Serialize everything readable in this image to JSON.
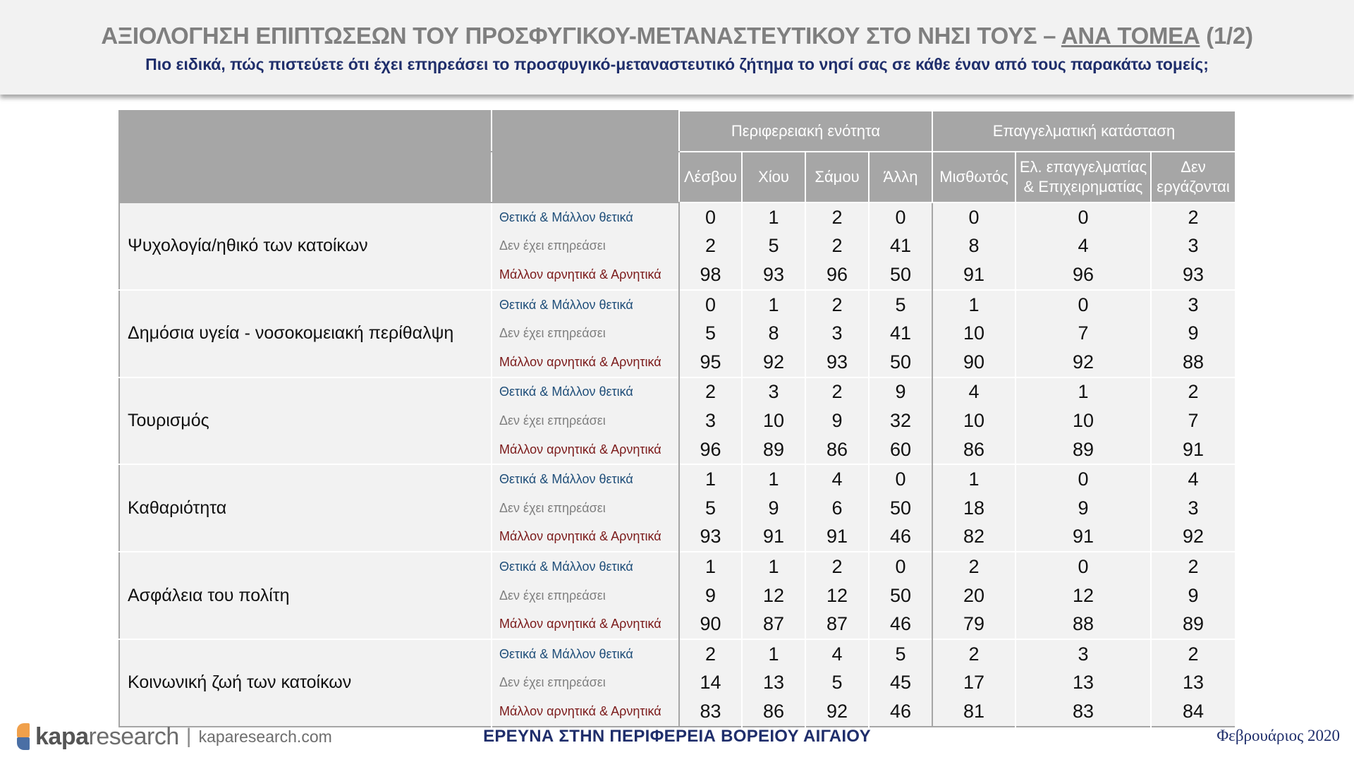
{
  "header": {
    "title_main": "ΑΞΙΟΛΟΓΗΣΗ ΕΠΙΠΤΩΣΕΩΝ ΤΟΥ ΠΡΟΣΦΥΓΙΚΟΥ-ΜΕΤΑΝΑΣΤΕΥΤΙΚΟΥ ΣΤΟ ΝΗΣΙ ΤΟΥΣ – ",
    "title_underlined": "ΑΝΑ ΤΟΜΕΑ",
    "title_page": " (1/2)",
    "subtitle": "Πιο ειδικά, πώς πιστεύετε ότι έχει επηρεάσει το προσφυγικό-μεταναστευτικό ζήτημα το νησί σας σε κάθε έναν από τους παρακάτω τομείς;"
  },
  "table": {
    "groups": [
      "Περιφερειακή ενότητα",
      "Επαγγελματική κατάσταση"
    ],
    "columns": [
      "Λέσβου",
      "Χίου",
      "Σάμου",
      "Άλλη",
      "Μισθωτός",
      "Ελ. επαγγελματίας & Επιχειρηματίας",
      "Δεν εργάζονται"
    ],
    "categories": [
      "Θετικά & Μάλλον θετικά",
      "Δεν έχει επηρεάσει",
      "Μάλλον αρνητικά & Αρνητικά"
    ],
    "sectors": [
      {
        "name": "Ψυχολογία/ηθικό των κατοίκων",
        "rows": [
          [
            "0",
            "1",
            "2",
            "0",
            "0",
            "0",
            "2"
          ],
          [
            "2",
            "5",
            "2",
            "41",
            "8",
            "4",
            "3"
          ],
          [
            "98",
            "93",
            "96",
            "50",
            "91",
            "96",
            "93"
          ]
        ]
      },
      {
        "name": "Δημόσια υγεία - νοσοκομειακή περίθαλψη",
        "rows": [
          [
            "0",
            "1",
            "2",
            "5",
            "1",
            "0",
            "3"
          ],
          [
            "5",
            "8",
            "3",
            "41",
            "10",
            "7",
            "9"
          ],
          [
            "95",
            "92",
            "93",
            "50",
            "90",
            "92",
            "88"
          ]
        ]
      },
      {
        "name": "Τουρισμός",
        "rows": [
          [
            "2",
            "3",
            "2",
            "9",
            "4",
            "1",
            "2"
          ],
          [
            "3",
            "10",
            "9",
            "32",
            "10",
            "10",
            "7"
          ],
          [
            "96",
            "89",
            "86",
            "60",
            "86",
            "89",
            "91"
          ]
        ]
      },
      {
        "name": "Καθαριότητα",
        "rows": [
          [
            "1",
            "1",
            "4",
            "0",
            "1",
            "0",
            "4"
          ],
          [
            "5",
            "9",
            "6",
            "50",
            "18",
            "9",
            "3"
          ],
          [
            "93",
            "91",
            "91",
            "46",
            "82",
            "91",
            "92"
          ]
        ]
      },
      {
        "name": "Ασφάλεια του πολίτη",
        "rows": [
          [
            "1",
            "1",
            "2",
            "0",
            "2",
            "0",
            "2"
          ],
          [
            "9",
            "12",
            "12",
            "50",
            "20",
            "12",
            "9"
          ],
          [
            "90",
            "87",
            "87",
            "46",
            "79",
            "88",
            "89"
          ]
        ]
      },
      {
        "name": "Κοινωνική ζωή των κατοίκων",
        "rows": [
          [
            "2",
            "1",
            "4",
            "5",
            "2",
            "3",
            "2"
          ],
          [
            "14",
            "13",
            "5",
            "45",
            "17",
            "13",
            "13"
          ],
          [
            "83",
            "86",
            "92",
            "46",
            "81",
            "83",
            "84"
          ]
        ]
      }
    ]
  },
  "footer": {
    "logo_bold": "kapa",
    "logo_light": "research",
    "logo_sep": "|",
    "url": "kaparesearch.com",
    "center": "ΕΡΕΥΝΑ ΣΤΗΝ ΠΕΡΙΦΕΡΕΙΑ ΒΟΡΕΙΟΥ ΑΙΓΑΙΟΥ",
    "date": "Φεβρουάριος 2020"
  },
  "colors": {
    "positive": "#1f4e79",
    "neutral": "#7f7f7f",
    "negative": "#7b1a1a",
    "header_gray": "#a6a6a6",
    "navy": "#1f2e6b"
  }
}
